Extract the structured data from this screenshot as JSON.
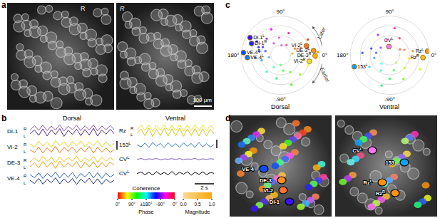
{
  "figure": {
    "panel_labels": [
      "a",
      "b",
      "c",
      "d"
    ],
    "panel_a": {
      "orientation_labels": [
        "R",
        "R"
      ],
      "scale_bar_label": "100 µm"
    },
    "panel_b": {
      "color_legend": {
        "title": "Coherence",
        "phase_label": "Phase",
        "magnitude_label": "Magnitude",
        "phase_ticks": [
          "0°",
          "90°",
          "±180°",
          "-90°",
          "0°"
        ],
        "magnitude_lim": [
          0,
          1
        ],
        "magnitude_ticks": [
          {
            "value": 0,
            "label": "0.0"
          },
          {
            "value": 0.5,
            "label": "0.5"
          },
          {
            "value": 1,
            "label": "1.0"
          }
        ]
      }
    },
    "panel_c": {
      "annotations": [
        "Later",
        "Earlier"
      ]
    },
    "panel_d": {
      "dorsal_labels": [
        {
          "text": "VE-4"
        },
        {
          "text": "DE-3"
        },
        {
          "text": "VI-2"
        },
        {
          "text": "DI-1"
        }
      ],
      "ventral_labels": [
        {
          "text": "CV",
          "sup": "L"
        },
        {
          "text": "153"
        },
        {
          "text": "Rz",
          "sup": "L"
        },
        {
          "text": "Rz",
          "sup": "R"
        }
      ]
    }
  },
  "chart_data": [
    {
      "type": "line",
      "title": "Dorsal",
      "x": [
        0,
        0.4,
        0.8,
        1.2,
        1.6,
        2,
        2.4,
        2.8,
        3.2,
        3.6,
        4,
        4.4,
        4.8,
        5.2,
        5.6,
        6,
        6.4,
        6.8,
        7.2,
        7.6,
        8
      ],
      "xlim": [
        0,
        8
      ],
      "ylim": [
        0,
        1
      ],
      "tick_labels": false,
      "rows": [
        {
          "label": "DI-1",
          "series": [
            {
              "name": "R",
              "color": "#8a4fb5",
              "values": [
                0.62,
                0.9,
                0.58,
                0.95,
                0.55,
                0.88,
                0.6,
                0.97,
                0.52,
                0.86,
                0.63,
                0.93,
                0.56,
                0.9,
                0.6,
                0.96,
                0.54,
                0.88,
                0.62,
                0.92,
                0.6
              ]
            },
            {
              "name": "L",
              "color": "#4b2380",
              "values": [
                0.35,
                0.6,
                0.22,
                0.68,
                0.18,
                0.62,
                0.28,
                0.7,
                0.15,
                0.58,
                0.3,
                0.66,
                0.2,
                0.64,
                0.25,
                0.72,
                0.18,
                0.6,
                0.3,
                0.65,
                0.32
              ]
            }
          ]
        },
        {
          "label": "VI-2",
          "series": [
            {
              "name": "R",
              "color": "#e6d21c",
              "values": [
                0.7,
                0.5,
                0.92,
                0.55,
                0.85,
                0.48,
                0.95,
                0.6,
                0.88,
                0.5,
                0.9,
                0.57,
                0.93,
                0.52,
                0.86,
                0.6,
                0.94,
                0.5,
                0.88,
                0.55,
                0.8
              ]
            },
            {
              "name": "L",
              "color": "#ef7a1e",
              "values": [
                0.3,
                0.12,
                0.5,
                0.08,
                0.45,
                0.15,
                0.55,
                0.1,
                0.48,
                0.2,
                0.52,
                0.1,
                0.45,
                0.18,
                0.55,
                0.08,
                0.5,
                0.15,
                0.46,
                0.12,
                0.35
              ]
            }
          ]
        },
        {
          "label": "DE-3",
          "series": [
            {
              "name": "R",
              "color": "#f2c419",
              "values": [
                0.6,
                0.85,
                0.55,
                0.95,
                0.6,
                0.9,
                0.5,
                0.92,
                0.58,
                0.88,
                0.62,
                0.96,
                0.55,
                0.86,
                0.6,
                0.94,
                0.52,
                0.9,
                0.6,
                0.87,
                0.65
              ]
            },
            {
              "name": "L",
              "color": "#f09a14",
              "values": [
                0.25,
                0.5,
                0.15,
                0.6,
                0.2,
                0.55,
                0.1,
                0.62,
                0.18,
                0.5,
                0.22,
                0.6,
                0.12,
                0.55,
                0.2,
                0.58,
                0.15,
                0.52,
                0.22,
                0.56,
                0.3
              ]
            }
          ]
        },
        {
          "label": "VE-4",
          "series": [
            {
              "name": "R",
              "color": "#2f5fc8",
              "values": [
                0.75,
                0.55,
                0.9,
                0.5,
                0.85,
                0.6,
                0.95,
                0.52,
                0.88,
                0.58,
                0.92,
                0.5,
                0.86,
                0.6,
                0.94,
                0.55,
                0.9,
                0.5,
                0.87,
                0.6,
                0.8
              ]
            },
            {
              "name": "L",
              "color": "#1c2a7e",
              "values": [
                0.35,
                0.15,
                0.5,
                0.1,
                0.45,
                0.2,
                0.55,
                0.12,
                0.48,
                0.18,
                0.5,
                0.08,
                0.45,
                0.2,
                0.52,
                0.12,
                0.48,
                0.1,
                0.45,
                0.2,
                0.4
              ]
            }
          ]
        }
      ]
    },
    {
      "type": "line",
      "title": "Ventral",
      "x": [
        0,
        0.4,
        0.8,
        1.2,
        1.6,
        2,
        2.4,
        2.8,
        3.2,
        3.6,
        4,
        4.4,
        4.8,
        5.2,
        5.6,
        6,
        6.4,
        6.8,
        7.2,
        7.6,
        8
      ],
      "xlim": [
        0,
        8
      ],
      "ylim": [
        0,
        1
      ],
      "tick_labels": false,
      "scale_bar": {
        "value": 2,
        "label": "2 s"
      },
      "rows": [
        {
          "label": "Rz",
          "series": [
            {
              "name": "R",
              "color": "#ece31e",
              "values": [
                0.6,
                0.95,
                0.5,
                0.98,
                0.45,
                0.92,
                0.55,
                0.97,
                0.48,
                0.94,
                0.5,
                0.98,
                0.45,
                0.93,
                0.52,
                0.96,
                0.48,
                0.95,
                0.5,
                0.92,
                0.6
              ]
            },
            {
              "name": "L",
              "color": "#d8c21a",
              "values": [
                0.3,
                0.65,
                0.1,
                0.7,
                0.05,
                0.62,
                0.12,
                0.68,
                0.08,
                0.66,
                0.1,
                0.7,
                0.06,
                0.64,
                0.12,
                0.68,
                0.08,
                0.66,
                0.1,
                0.62,
                0.25
              ]
            }
          ]
        },
        {
          "label": "153",
          "sup": "L",
          "series": [
            {
              "color": "#3577c4",
              "values": [
                0.5,
                0.35,
                0.65,
                0.3,
                0.7,
                0.4,
                0.62,
                0.3,
                0.68,
                0.38,
                0.6,
                0.32,
                0.66,
                0.4,
                0.62,
                0.3,
                0.7,
                0.36,
                0.6,
                0.34,
                0.55
              ]
            }
          ]
        },
        {
          "label": "CV",
          "sup": "L",
          "series": [
            {
              "color": "#7f63c4",
              "values": [
                0.5,
                0.55,
                0.47,
                0.53,
                0.5,
                0.56,
                0.46,
                0.52,
                0.5,
                0.54,
                0.48,
                0.55,
                0.47,
                0.52,
                0.5,
                0.56,
                0.46,
                0.53,
                0.49,
                0.54,
                0.5
              ]
            }
          ]
        },
        {
          "label": "CV",
          "sup": "L",
          "series": [
            {
              "color": "#000000",
              "values": [
                0.5,
                0.62,
                0.4,
                0.6,
                0.38,
                0.65,
                0.42,
                0.58,
                0.4,
                0.66,
                0.38,
                0.6,
                0.44,
                0.64,
                0.36,
                0.6,
                0.42,
                0.63,
                0.4,
                0.58,
                0.5
              ]
            }
          ]
        }
      ]
    },
    {
      "type": "polar",
      "title": "Dorsal",
      "rlim": [
        0,
        1
      ],
      "rticks": [
        0.25,
        0.5,
        0.75,
        1
      ],
      "angle_ticks": [
        {
          "value": 90,
          "label": "90°"
        },
        {
          "value": 180,
          "label": "180°"
        },
        {
          "value": 0,
          "label": "0°"
        },
        {
          "value": -90,
          "label": "-90°"
        }
      ],
      "points": [
        [
          5,
          0.95
        ],
        [
          10,
          0.85
        ],
        [
          -5,
          0.9
        ],
        [
          15,
          0.7
        ],
        [
          20,
          0.55
        ],
        [
          -12,
          0.6
        ],
        [
          25,
          0.4
        ],
        [
          0,
          0.5
        ],
        [
          -20,
          0.75
        ],
        [
          30,
          0.8
        ],
        [
          8,
          0.3
        ],
        [
          70,
          0.6
        ],
        [
          95,
          0.45
        ],
        [
          110,
          0.7
        ],
        [
          120,
          0.35
        ],
        [
          85,
          0.25
        ],
        [
          130,
          0.55
        ],
        [
          60,
          0.3
        ],
        [
          150,
          0.7
        ],
        [
          160,
          0.6
        ],
        [
          170,
          0.55
        ],
        [
          -175,
          0.65
        ],
        [
          -165,
          0.5
        ],
        [
          165,
          0.4
        ],
        [
          -170,
          0.3
        ],
        [
          155,
          0.5
        ],
        [
          -60,
          0.5
        ],
        [
          -80,
          0.4
        ],
        [
          -100,
          0.6
        ],
        [
          -120,
          0.35
        ],
        [
          -45,
          0.7
        ],
        [
          -90,
          0.25
        ],
        [
          -130,
          0.55
        ],
        [
          -70,
          0.8
        ]
      ],
      "labeled_points": [
        {
          "label": "DI-1",
          "sup": "L",
          "phase": 150,
          "magnitude": 0.9
        },
        {
          "label": "DI-1",
          "sup": "R",
          "phase": 158,
          "magnitude": 0.8
        },
        {
          "label": "VE-4",
          "sup": "R",
          "phase": 176,
          "magnitude": 0.95
        },
        {
          "label": "VE-4",
          "sup": "L",
          "phase": -176,
          "magnitude": 0.85
        },
        {
          "label": "VI-2",
          "sup": "L",
          "phase": 20,
          "magnitude": 0.7
        },
        {
          "label": "DE-3",
          "sup": "L",
          "phase": 8,
          "magnitude": 0.85
        },
        {
          "label": "DE-3",
          "sup": "R",
          "phase": -1,
          "magnitude": 0.88
        },
        {
          "label": "VI-2",
          "sup": "R",
          "phase": -12,
          "magnitude": 0.75
        }
      ]
    },
    {
      "type": "polar",
      "title": "Ventral",
      "rlim": [
        0,
        1
      ],
      "rticks": [
        0.25,
        0.5,
        0.75,
        1
      ],
      "angle_ticks": [
        {
          "value": 90,
          "label": "90°"
        },
        {
          "value": 180,
          "label": "180°"
        },
        {
          "value": 0,
          "label": "0°"
        },
        {
          "value": -90,
          "label": "-90°"
        }
      ],
      "points": [
        [
          0,
          0.7
        ],
        [
          10,
          0.6
        ],
        [
          -10,
          0.5
        ],
        [
          20,
          0.4
        ],
        [
          -25,
          0.85
        ],
        [
          30,
          0.3
        ],
        [
          60,
          0.5
        ],
        [
          80,
          0.7
        ],
        [
          100,
          0.4
        ],
        [
          120,
          0.6
        ],
        [
          140,
          0.3
        ],
        [
          160,
          0.5
        ],
        [
          175,
          0.7
        ],
        [
          -170,
          0.4
        ],
        [
          -150,
          0.6
        ],
        [
          170,
          0.35
        ],
        [
          -40,
          0.5
        ],
        [
          -60,
          0.7
        ],
        [
          -75,
          0.4
        ],
        [
          -90,
          0.6
        ],
        [
          -105,
          0.8
        ],
        [
          -120,
          0.45
        ],
        [
          -135,
          0.3
        ],
        [
          -50,
          0.25
        ]
      ],
      "labeled_points": [
        {
          "label": "CV",
          "sup": "L",
          "phase": 95,
          "magnitude": 0.22
        },
        {
          "label": "Rz",
          "sup": "L",
          "phase": 6,
          "magnitude": 0.97
        },
        {
          "label": "Rz",
          "sup": "R",
          "phase": -4,
          "magnitude": 0.85
        },
        {
          "label": "153",
          "sup": "L",
          "phase": -162,
          "magnitude": 0.95
        }
      ]
    }
  ]
}
